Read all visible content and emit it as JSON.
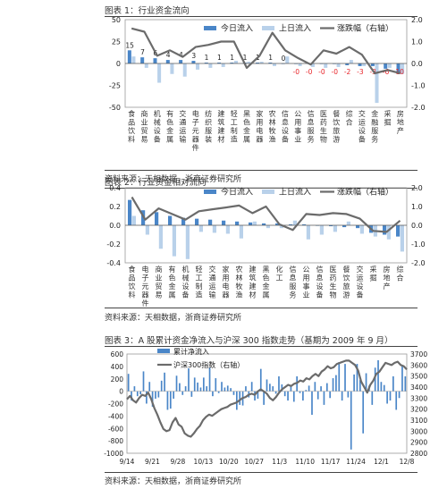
{
  "colors": {
    "today": "#4a86c8",
    "yesterday": "#b9d1ea",
    "line": "#6b6b6b",
    "neg_label": "#e8262b",
    "zero_line": "#555555"
  },
  "charts": [
    {
      "title": "图表 1：行业资金流向",
      "source": "资料来源：天相数据，浙商证券研究所",
      "chart_data": {
        "type": "bar",
        "legend": [
          "今日流入",
          "上日流入",
          "涨跌幅（右轴）"
        ],
        "legend_position": "top-right",
        "categories": [
          "食品饮料",
          "商业贸易",
          "机械设备",
          "有色金属",
          "交通运输",
          "电子元器件",
          "纺织服装",
          "建筑建材",
          "轻工制造",
          "黑色金属",
          "家用电器",
          "农林牧渔",
          "信息设备",
          "公用事业",
          "信息服务",
          "医药生物",
          "餐饮旅游",
          "综合",
          "交运设备",
          "金融服务",
          "采掘",
          "房地产"
        ],
        "y_left": {
          "min": -50,
          "max": 50,
          "ticks": [
            "50",
            "25",
            "0",
            "-25",
            "-50"
          ],
          "tick_values": [
            50,
            25,
            0,
            -25,
            -50
          ]
        },
        "y_right": {
          "min": -2.0,
          "max": 2.0,
          "ticks": [
            "2.0",
            "1.0",
            "0.0",
            "-1.0",
            "-2.0"
          ],
          "tick_values": [
            2,
            1,
            0,
            -1,
            -2
          ]
        },
        "series": [
          {
            "name": "今日流入",
            "values": [
              15,
              7,
              6,
              4,
              4,
              3,
              1,
              1,
              1,
              1,
              1,
              1,
              0,
              0,
              0,
              0,
              0,
              -2,
              -3,
              -3,
              -6,
              -10
            ]
          },
          {
            "name": "上日流入",
            "values": [
              8,
              -5,
              -22,
              -12,
              -15,
              -7,
              -5,
              -4,
              3,
              2,
              2,
              -3,
              8,
              -3,
              -4,
              -5,
              -4,
              4,
              -3,
              -45,
              -5,
              -12
            ]
          },
          {
            "name": "涨跌幅（右轴）",
            "values": [
              1.6,
              1.45,
              0.35,
              0.6,
              0.3,
              0.75,
              0.85,
              1.0,
              1.0,
              -0.2,
              0.35,
              1.4,
              0.6,
              0.25,
              -0.05,
              0.6,
              0.45,
              0.75,
              0.4,
              -0.45,
              -0.3,
              -0.45
            ]
          }
        ],
        "data_labels": [
          "15",
          "7",
          "6",
          "4",
          "4",
          "3",
          "1",
          "1",
          "1",
          "1",
          "1",
          "1",
          "0",
          "-0",
          "-0",
          "-0",
          "-0",
          "-2",
          "-3",
          "-3",
          "-6",
          "-10"
        ]
      }
    },
    {
      "title": "图表 2：行业资金相对流向",
      "source": "资料来源：天相数据，浙商证券研究所",
      "chart_data": {
        "type": "bar",
        "legend": [
          "今日流入",
          "上日流入",
          "涨跌幅（右轴）"
        ],
        "legend_position": "top-right",
        "categories": [
          "食品饮料",
          "电子元器件",
          "商业贸易",
          "有色金属",
          "机械设备",
          "轻工制造",
          "交通运输",
          "家用电器",
          "农林牧渔",
          "建筑建材",
          "黑色金属",
          "化工",
          "信息服务",
          "公用事业",
          "信息设备",
          "医药生物",
          "餐饮旅游",
          "交运设备",
          "采掘",
          "房地产",
          "综合"
        ],
        "y_left": {
          "min": -0.4,
          "max": 0.4,
          "ticks": [
            "0.4",
            "0.2",
            "0.0",
            "-0.2",
            "-0.4"
          ],
          "tick_values": [
            0.4,
            0.2,
            0,
            -0.2,
            -0.4
          ]
        },
        "y_right": {
          "min": -2.0,
          "max": 2.0,
          "ticks": [
            "2.0",
            "1.0",
            "0.0",
            "-1.0",
            "-2.0"
          ],
          "tick_values": [
            2,
            1,
            0,
            -1,
            -2
          ]
        },
        "series": [
          {
            "name": "今日流入",
            "values": [
              0.27,
              0.16,
              0.14,
              0.1,
              0.08,
              0.07,
              0.06,
              0.05,
              0.04,
              0.03,
              0.02,
              0.02,
              0.01,
              0.01,
              0.0,
              -0.01,
              -0.02,
              -0.03,
              -0.08,
              -0.1,
              -0.12
            ]
          },
          {
            "name": "上日流入",
            "values": [
              0.1,
              -0.1,
              -0.25,
              -0.33,
              -0.36,
              -0.07,
              -0.08,
              -0.09,
              -0.14,
              0.04,
              -0.03,
              -0.03,
              0.05,
              -0.15,
              -0.1,
              -0.07,
              0.04,
              -0.09,
              -0.12,
              -0.15,
              -0.28
            ]
          },
          {
            "name": "涨跌幅（右轴）",
            "values": [
              1.5,
              0.3,
              0.9,
              0.6,
              0.3,
              0.75,
              0.85,
              0.95,
              1.05,
              0.65,
              1.0,
              0.05,
              -0.25,
              0.6,
              0.55,
              0.65,
              0.6,
              0.35,
              -0.3,
              -0.35,
              0.25
            ]
          }
        ]
      }
    },
    {
      "title": "图表 3：A 股累计资金净流入与沪深 300 指数走势（基期为 2009 年 9 月）",
      "source": "资料来源：天相数据，浙商证券研究所",
      "chart_data": {
        "type": "bar",
        "legend": [
          "累计净流入",
          "沪深300指数（右轴）"
        ],
        "legend_position": "top-left",
        "x_ticks": [
          "9/14",
          "9/21",
          "9/28",
          "10/13",
          "10/20",
          "10/27",
          "11/3",
          "11/10",
          "11/17",
          "11/24",
          "12/1",
          "12/8"
        ],
        "y_left": {
          "min": -1000,
          "max": 600,
          "ticks": [
            "600",
            "400",
            "200",
            "0",
            "-200",
            "-400",
            "-600",
            "-800",
            "-1000"
          ],
          "tick_values": [
            600,
            400,
            200,
            0,
            -200,
            -400,
            -600,
            -800,
            -1000
          ]
        },
        "y_right": {
          "min": 2800,
          "max": 3700,
          "ticks": [
            "3700",
            "3600",
            "3500",
            "3400",
            "3300",
            "3200",
            "3100",
            "3000",
            "2900",
            "2800"
          ],
          "tick_values": [
            3700,
            3600,
            3500,
            3400,
            3300,
            3200,
            3100,
            3000,
            2900,
            2800
          ]
        },
        "series": [
          {
            "name": "累计净流入",
            "values": [
              280,
              -150,
              80,
              -80,
              -50,
              320,
              -200,
              150,
              -250,
              -120,
              -100,
              170,
              300,
              -300,
              -280,
              -120,
              250,
              130,
              -60,
              80,
              370,
              -90,
              220,
              140,
              60,
              220,
              80,
              380,
              -80,
              210,
              -30,
              150,
              60,
              90,
              50,
              -60,
              -300,
              -220,
              -230,
              80,
              -100,
              150,
              -150,
              -120,
              360,
              -220,
              190,
              120,
              80,
              -40,
              240,
              110,
              -80,
              -150,
              90,
              -170,
              240,
              -30,
              -150,
              20,
              90,
              -380,
              150,
              -130,
              80,
              -220,
              130,
              -110,
              210,
              260,
              470,
              -150,
              440,
              -100,
              -940,
              270,
              440,
              180,
              -680,
              290,
              90,
              -220,
              380,
              500,
              150,
              100,
              -200,
              -150,
              240,
              -300,
              -110,
              420,
              240
            ]
          },
          {
            "name": "沪深300指数（右轴）",
            "values": [
              3290,
              3320,
              3280,
              3260,
              3300,
              3330,
              3320,
              3350,
              3290,
              3210,
              3150,
              3080,
              3020,
              3000,
              3010,
              3080,
              3120,
              3060,
              3040,
              2980,
              2960,
              2950,
              2980,
              3020,
              3050,
              3100,
              3130,
              3150,
              3140,
              3160,
              3180,
              3200,
              3210,
              3220,
              3240,
              3250,
              3260,
              3280,
              3300,
              3310,
              3330,
              3340,
              3330,
              3360,
              3380,
              3360,
              3340,
              3300,
              3280,
              3310,
              3350,
              3380,
              3400,
              3420,
              3410,
              3430,
              3440,
              3460,
              3450,
              3480,
              3470,
              3500,
              3520,
              3500,
              3540,
              3560,
              3590,
              3570,
              3580,
              3610,
              3620,
              3630,
              3640,
              3640,
              3620,
              3600,
              3550,
              3450,
              3400,
              3350,
              3420,
              3460,
              3520,
              3540,
              3580,
              3620,
              3610,
              3600,
              3620,
              3630,
              3600,
              3590,
              3560
            ]
          }
        ]
      }
    }
  ]
}
